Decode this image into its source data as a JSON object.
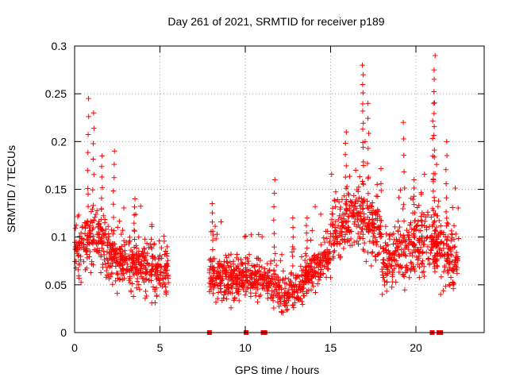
{
  "chart_data": {
    "type": "scatter",
    "title": "Day 261 of 2021, SRMTID for receiver p189",
    "xlabel": "GPS time / hours",
    "ylabel": "SRMTID / TECUs",
    "xlim": [
      0,
      24
    ],
    "ylim": [
      0,
      0.3
    ],
    "xticks": [
      0,
      5,
      10,
      15,
      20
    ],
    "xtick_labels": [
      "0",
      "5",
      "10",
      "15",
      "20"
    ],
    "yticks": [
      0,
      0.05,
      0.1,
      0.15,
      0.2,
      0.25,
      0.3
    ],
    "ytick_labels": [
      "0",
      "0.05",
      "0.1",
      "0.15",
      "0.2",
      "0.25",
      "0.3"
    ],
    "grid": true,
    "marker": "plus",
    "color": "#ff0000",
    "zero_markers": [
      7.9,
      10.05,
      11.05,
      11.15,
      20.95,
      21.35,
      21.45
    ],
    "profile": {
      "description": "Approximate envelope of the dense point cloud, in data units",
      "segments": [
        {
          "x": [
            0.0,
            5.5
          ],
          "y": [
            0.03,
            0.16
          ],
          "peaks": [
            [
              0.8,
              0.245
            ],
            [
              1.1,
              0.23
            ],
            [
              2.3,
              0.19
            ],
            [
              1.6,
              0.185
            ],
            [
              3.5,
              0.14
            ]
          ]
        },
        {
          "x": [
            7.9,
            15.0
          ],
          "y": [
            0.015,
            0.16
          ],
          "peaks": [
            [
              8.1,
              0.135
            ],
            [
              11.7,
              0.16
            ],
            [
              12.8,
              0.12
            ],
            [
              13.6,
              0.12
            ]
          ]
        },
        {
          "x": [
            15.0,
            22.5
          ],
          "y": [
            0.04,
            0.2
          ],
          "peaks": [
            [
              16.9,
              0.28
            ],
            [
              16.9,
              0.27
            ],
            [
              15.9,
              0.21
            ],
            [
              17.2,
              0.24
            ],
            [
              19.3,
              0.22
            ],
            [
              21.1,
              0.29
            ],
            [
              21.05,
              0.275
            ],
            [
              21.0,
              0.24
            ],
            [
              21.8,
              0.2
            ],
            [
              19.9,
              0.16
            ]
          ]
        }
      ]
    }
  }
}
